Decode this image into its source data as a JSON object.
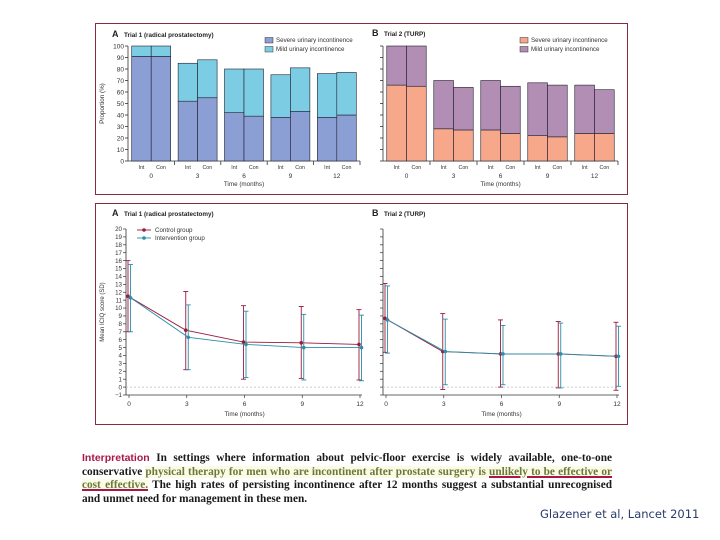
{
  "chart_data": [
    {
      "id": "bar-a",
      "type": "bar",
      "stacked": true,
      "panel_letter": "A",
      "title": "Trial 1 (radical prostatectomy)",
      "xlabel": "Time (months)",
      "ylabel": "Proportion (%)",
      "ylim": [
        0,
        100
      ],
      "yticks": [
        0,
        10,
        20,
        30,
        40,
        50,
        60,
        70,
        80,
        90,
        100
      ],
      "groups": [
        "0",
        "3",
        "6",
        "9",
        "12"
      ],
      "subcategories": [
        "Int",
        "Con"
      ],
      "legend_position": "top-right",
      "series": [
        {
          "name": "Severe urinary incontinence",
          "color": "#8c9fd4",
          "values": [
            91,
            91,
            52,
            55,
            42,
            39,
            38,
            43,
            38,
            40
          ]
        },
        {
          "name": "Mild urinary incontinence",
          "color": "#7ccde3",
          "values": [
            9,
            9,
            33,
            33,
            38,
            41,
            37,
            38,
            38,
            37
          ]
        }
      ]
    },
    {
      "id": "bar-b",
      "type": "bar",
      "stacked": true,
      "panel_letter": "B",
      "title": "Trial 2 (TURP)",
      "xlabel": "Time (months)",
      "ylabel": "",
      "ylim": [
        0,
        100
      ],
      "groups": [
        "0",
        "3",
        "6",
        "9",
        "12"
      ],
      "subcategories": [
        "Int",
        "Con"
      ],
      "legend_position": "top-right",
      "series": [
        {
          "name": "Severe urinary incontinence",
          "color": "#f7a88a",
          "values": [
            66,
            65,
            28,
            27,
            27,
            24,
            22,
            21,
            24,
            24
          ]
        },
        {
          "name": "Mild urinary incontinence",
          "color": "#b28db4",
          "values": [
            34,
            35,
            42,
            37,
            43,
            41,
            46,
            45,
            42,
            38
          ]
        }
      ]
    },
    {
      "id": "line-a",
      "type": "line",
      "panel_letter": "A",
      "title": "Trial 1 (radical prostatectomy)",
      "xlabel": "Time (months)",
      "ylabel": "Mean ICIQ score (SD)",
      "x": [
        0,
        3,
        6,
        9,
        12
      ],
      "ylim": [
        -1,
        20
      ],
      "yticks": [
        -1,
        0,
        1,
        2,
        3,
        4,
        5,
        6,
        7,
        8,
        9,
        10,
        11,
        12,
        13,
        14,
        15,
        16,
        17,
        18,
        19,
        20
      ],
      "legend_position": "top-left",
      "series": [
        {
          "name": "Control group",
          "color": "#9b1b3c",
          "values": [
            11.5,
            7.2,
            5.7,
            5.6,
            5.4
          ],
          "err_low": [
            7.0,
            2.2,
            1.0,
            1.1,
            0.9
          ],
          "err_high": [
            16.0,
            12.1,
            10.3,
            10.2,
            9.8
          ]
        },
        {
          "name": "Intervention group",
          "color": "#2a8fa8",
          "values": [
            11.3,
            6.3,
            5.4,
            5.0,
            5.0
          ],
          "err_low": [
            7.0,
            2.2,
            1.2,
            0.9,
            0.8
          ],
          "err_high": [
            15.5,
            10.4,
            9.6,
            9.2,
            9.1
          ]
        }
      ]
    },
    {
      "id": "line-b",
      "type": "line",
      "panel_letter": "B",
      "title": "Trial 2 (TURP)",
      "xlabel": "Time (months)",
      "ylabel": "",
      "x": [
        0,
        3,
        6,
        9,
        12
      ],
      "ylim": [
        -1,
        20
      ],
      "series": [
        {
          "name": "Control group",
          "color": "#9b1b3c",
          "values": [
            8.7,
            4.5,
            4.2,
            4.2,
            3.9
          ],
          "err_low": [
            4.4,
            -0.3,
            0.0,
            -0.1,
            -0.4
          ],
          "err_high": [
            13.1,
            9.3,
            8.5,
            8.3,
            8.2
          ]
        },
        {
          "name": "Intervention group",
          "color": "#2a8fa8",
          "values": [
            8.5,
            4.5,
            4.2,
            4.2,
            3.9
          ],
          "err_low": [
            4.3,
            0.3,
            0.3,
            -0.1,
            0.1
          ],
          "err_high": [
            12.8,
            8.6,
            7.8,
            8.1,
            7.7
          ]
        }
      ]
    }
  ],
  "interpretation": {
    "label": "Interpretation",
    "part1": " In settings where information about pelvic-floor exercise is widely available, one-to-one conservative ",
    "highlight": "physical therapy for men who are incontinent after prostate surgery is ",
    "underlined": "unlikely to be effective or cost effective.",
    "part2": " The high rates of persisting incontinence after 12 months suggest a substantial unrecognised and unmet need for management in these men."
  },
  "citation": "Glazener et al, Lancet 2011"
}
